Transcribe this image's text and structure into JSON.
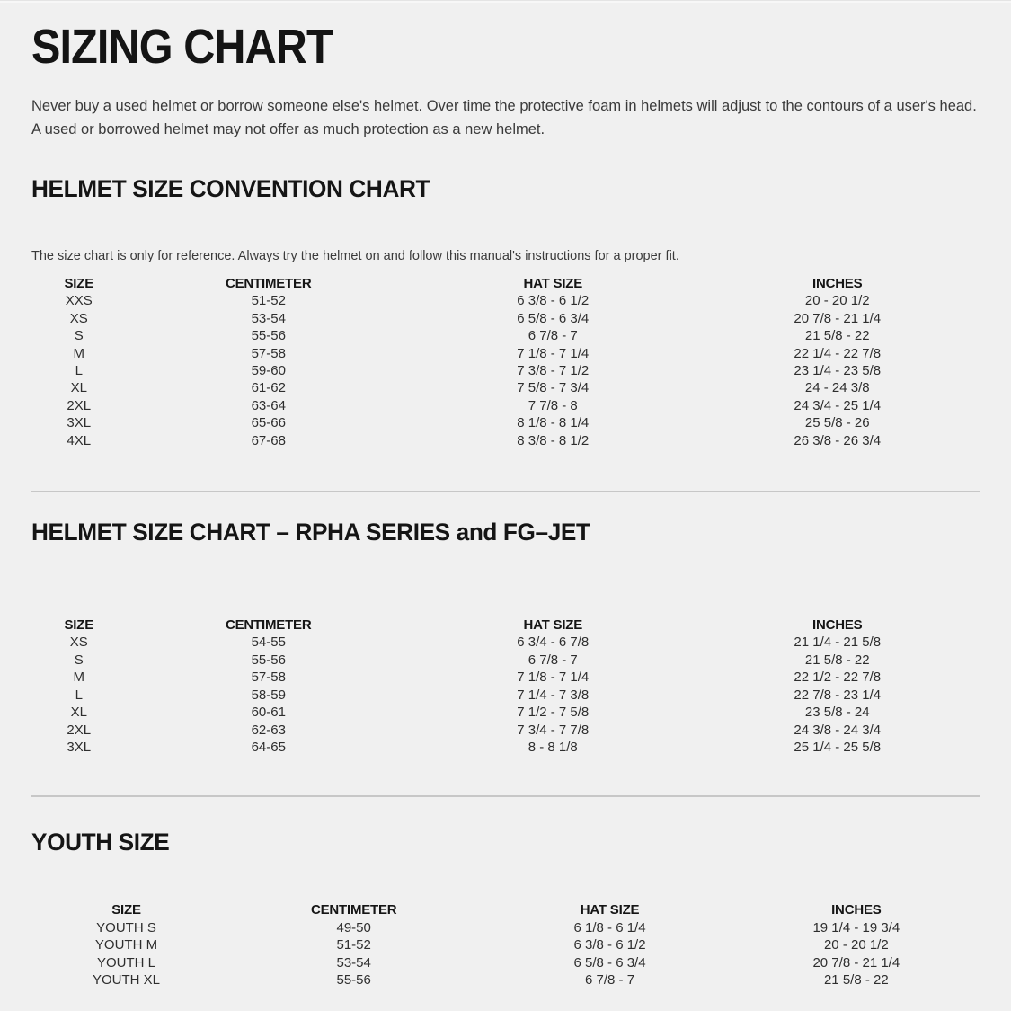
{
  "page": {
    "title": "SIZING CHART",
    "intro": "Never buy a used helmet or borrow someone else's helmet. Over time the protective foam in helmets will adjust to the contours of a user's head. A used or borrowed helmet may not offer as much protection as a new helmet."
  },
  "sections": [
    {
      "heading": "HELMET SIZE CONVENTION CHART",
      "note": "The size chart is only for reference. Always try the helmet on and follow this manual's instructions for a proper fit.",
      "columns": [
        "SIZE",
        "CENTIMETER",
        "HAT SIZE",
        "INCHES"
      ],
      "rows": [
        [
          "XXS",
          "51-52",
          "6 3/8 - 6 1/2",
          "20 - 20 1/2"
        ],
        [
          "XS",
          "53-54",
          "6 5/8 - 6 3/4",
          "20 7/8 - 21 1/4"
        ],
        [
          "S",
          "55-56",
          "6 7/8 - 7",
          "21 5/8 - 22"
        ],
        [
          "M",
          "57-58",
          "7 1/8 - 7 1/4",
          "22 1/4 - 22 7/8"
        ],
        [
          "L",
          "59-60",
          "7 3/8 - 7 1/2",
          "23 1/4 - 23 5/8"
        ],
        [
          "XL",
          "61-62",
          "7 5/8 - 7 3/4",
          "24 - 24 3/8"
        ],
        [
          "2XL",
          "63-64",
          "7 7/8 - 8",
          "24 3/4 - 25 1/4"
        ],
        [
          "3XL",
          "65-66",
          "8 1/8 - 8 1/4",
          "25 5/8 - 26"
        ],
        [
          "4XL",
          "67-68",
          "8 3/8 - 8 1/2",
          "26 3/8 - 26 3/4"
        ]
      ]
    },
    {
      "heading": "HELMET SIZE CHART – RPHA SERIES and FG–JET",
      "columns": [
        "SIZE",
        "CENTIMETER",
        "HAT SIZE",
        "INCHES"
      ],
      "rows": [
        [
          "XS",
          "54-55",
          "6 3/4 - 6 7/8",
          "21 1/4 - 21 5/8"
        ],
        [
          "S",
          "55-56",
          "6 7/8 - 7",
          "21 5/8 - 22"
        ],
        [
          "M",
          "57-58",
          "7 1/8 - 7 1/4",
          "22 1/2 - 22 7/8"
        ],
        [
          "L",
          "58-59",
          "7 1/4 - 7 3/8",
          "22 7/8 - 23 1/4"
        ],
        [
          "XL",
          "60-61",
          "7 1/2 - 7 5/8",
          "23 5/8 - 24"
        ],
        [
          "2XL",
          "62-63",
          "7 3/4 - 7 7/8",
          "24 3/8 - 24 3/4"
        ],
        [
          "3XL",
          "64-65",
          "8 - 8 1/8",
          "25 1/4 - 25 5/8"
        ]
      ]
    },
    {
      "heading": "YOUTH SIZE",
      "columns": [
        "SIZE",
        "CENTIMETER",
        "HAT SIZE",
        "INCHES"
      ],
      "rows": [
        [
          "YOUTH S",
          "49-50",
          "6 1/8 - 6 1/4",
          "19 1/4 - 19 3/4"
        ],
        [
          "YOUTH M",
          "51-52",
          "6 3/8 - 6 1/2",
          "20 - 20 1/2"
        ],
        [
          "YOUTH L",
          "53-54",
          "6 5/8 - 6 3/4",
          "20 7/8 - 21 1/4"
        ],
        [
          "YOUTH XL",
          "55-56",
          "6 7/8 - 7",
          "21 5/8 - 22"
        ]
      ]
    }
  ]
}
